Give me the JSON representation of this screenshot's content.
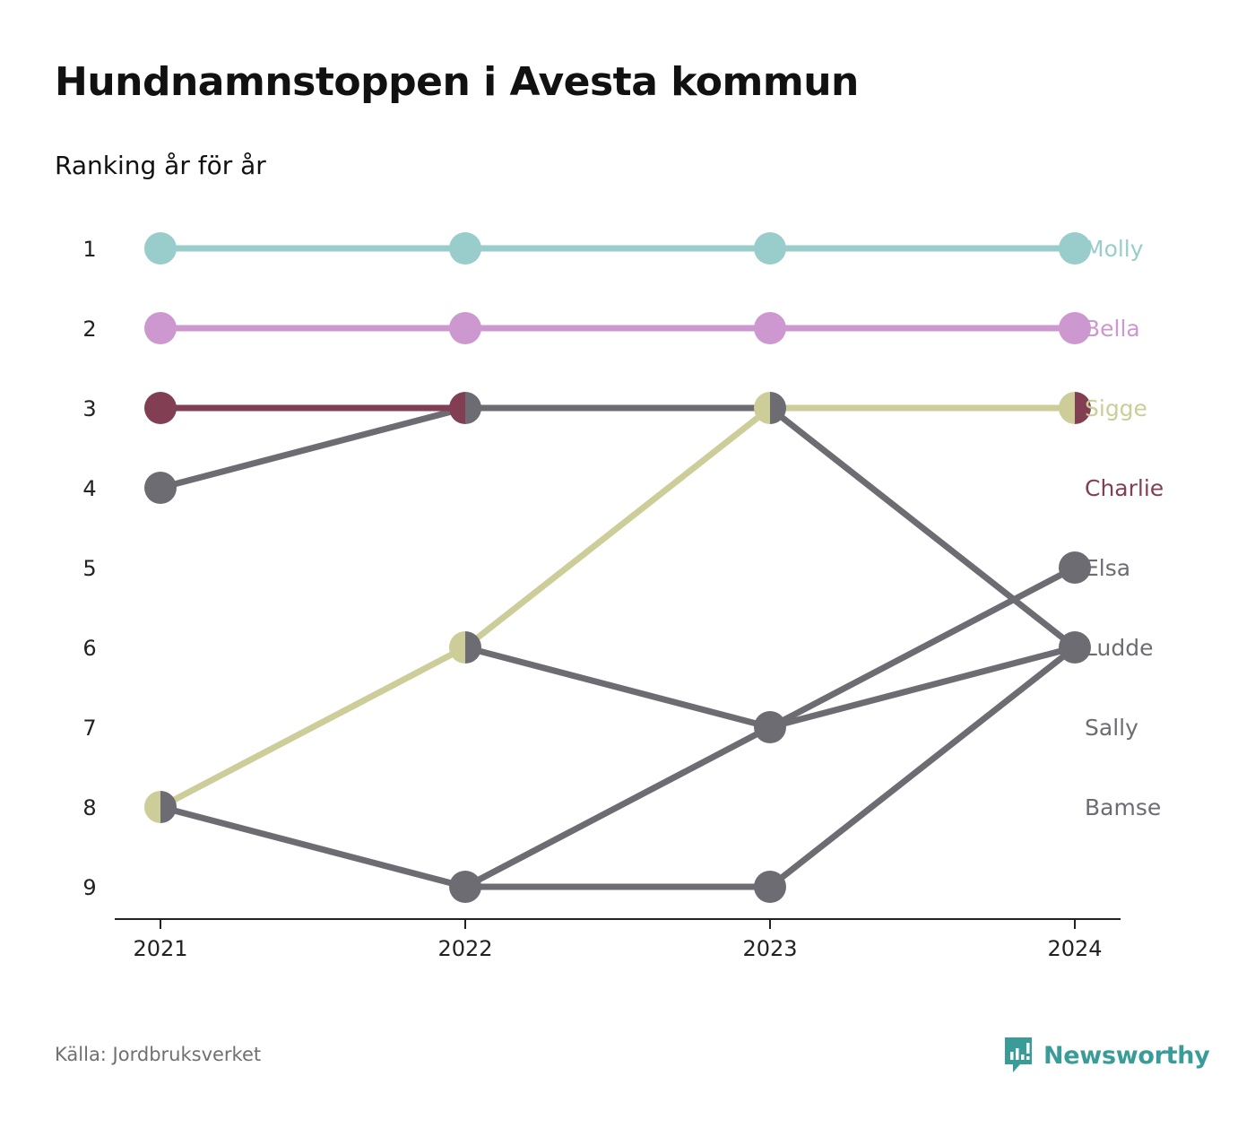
{
  "header": {
    "title": "Hundnamnstoppen i Avesta kommun",
    "subtitle": "Ranking år för år"
  },
  "footer": {
    "source": "Källa: Jordbruksverket",
    "brand": "Newsworthy"
  },
  "chart_data": {
    "type": "line",
    "title": "Hundnamnstoppen i Avesta kommun",
    "subtitle": "Ranking år för år",
    "xlabel": "",
    "ylabel": "",
    "x": [
      "2021",
      "2022",
      "2023",
      "2024"
    ],
    "y_ticks": [
      "1",
      "2",
      "3",
      "4",
      "5",
      "6",
      "7",
      "8",
      "9"
    ],
    "ylim": [
      1,
      9
    ],
    "y_inverted": true,
    "grid": false,
    "legend": "direct labels right",
    "series": [
      {
        "name": "Molly",
        "color": "#98cdcc",
        "values": [
          1,
          1,
          1,
          1
        ],
        "label_rank": 1
      },
      {
        "name": "Bella",
        "color": "#cd98cf",
        "values": [
          2,
          2,
          2,
          2
        ],
        "label_rank": 2
      },
      {
        "name": "Sigge",
        "color": "#cccd98",
        "values": [
          8,
          6,
          3,
          3
        ],
        "label_rank": 3
      },
      {
        "name": "Charlie",
        "color": "#823f54",
        "values": [
          3,
          3,
          null,
          3
        ],
        "label_rank": 4
      },
      {
        "name": "Elsa",
        "color": "#6d6c73",
        "values": [
          null,
          9,
          7,
          5
        ],
        "label_rank": 5
      },
      {
        "name": "Ludde",
        "color": "#6d6c73",
        "values": [
          4,
          3,
          3,
          6
        ],
        "label_rank": 6
      },
      {
        "name": "Sally",
        "color": "#6d6c73",
        "values": [
          8,
          9,
          9,
          6
        ],
        "label_rank": 7
      },
      {
        "name": "Bamse",
        "color": "#6d6c73",
        "values": [
          null,
          6,
          7,
          6
        ],
        "label_rank": 8
      }
    ]
  }
}
